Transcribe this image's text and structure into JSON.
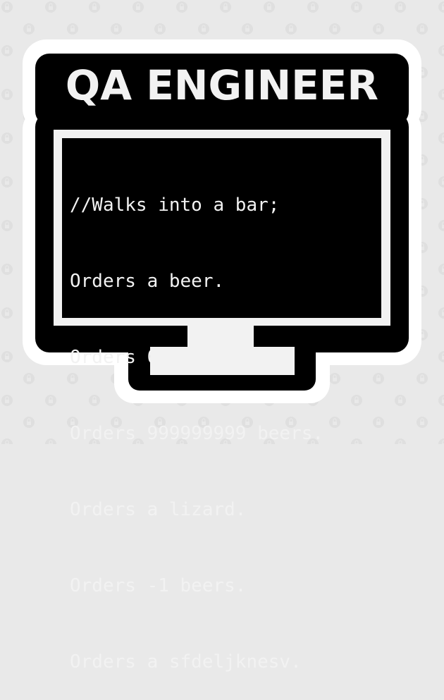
{
  "colors": {
    "background": "#e9e9e9",
    "sticker_outline": "#ffffff",
    "sticker_fill": "#000000",
    "text": "#f2f2f2",
    "monitor_frame": "#f2f2f2"
  },
  "title": "QA ENGINEER",
  "code_lines": [
    "//Walks into a bar;",
    "Orders a beer.",
    "Orders 0 beers.",
    "Orders 999999999 beers.",
    "Orders a lizard.",
    "Orders -1 beers.",
    "Orders a sfdeljknesv."
  ],
  "icons": {
    "background_watermark": "lock-watermark-icon",
    "monitor": "computer-monitor-icon"
  }
}
